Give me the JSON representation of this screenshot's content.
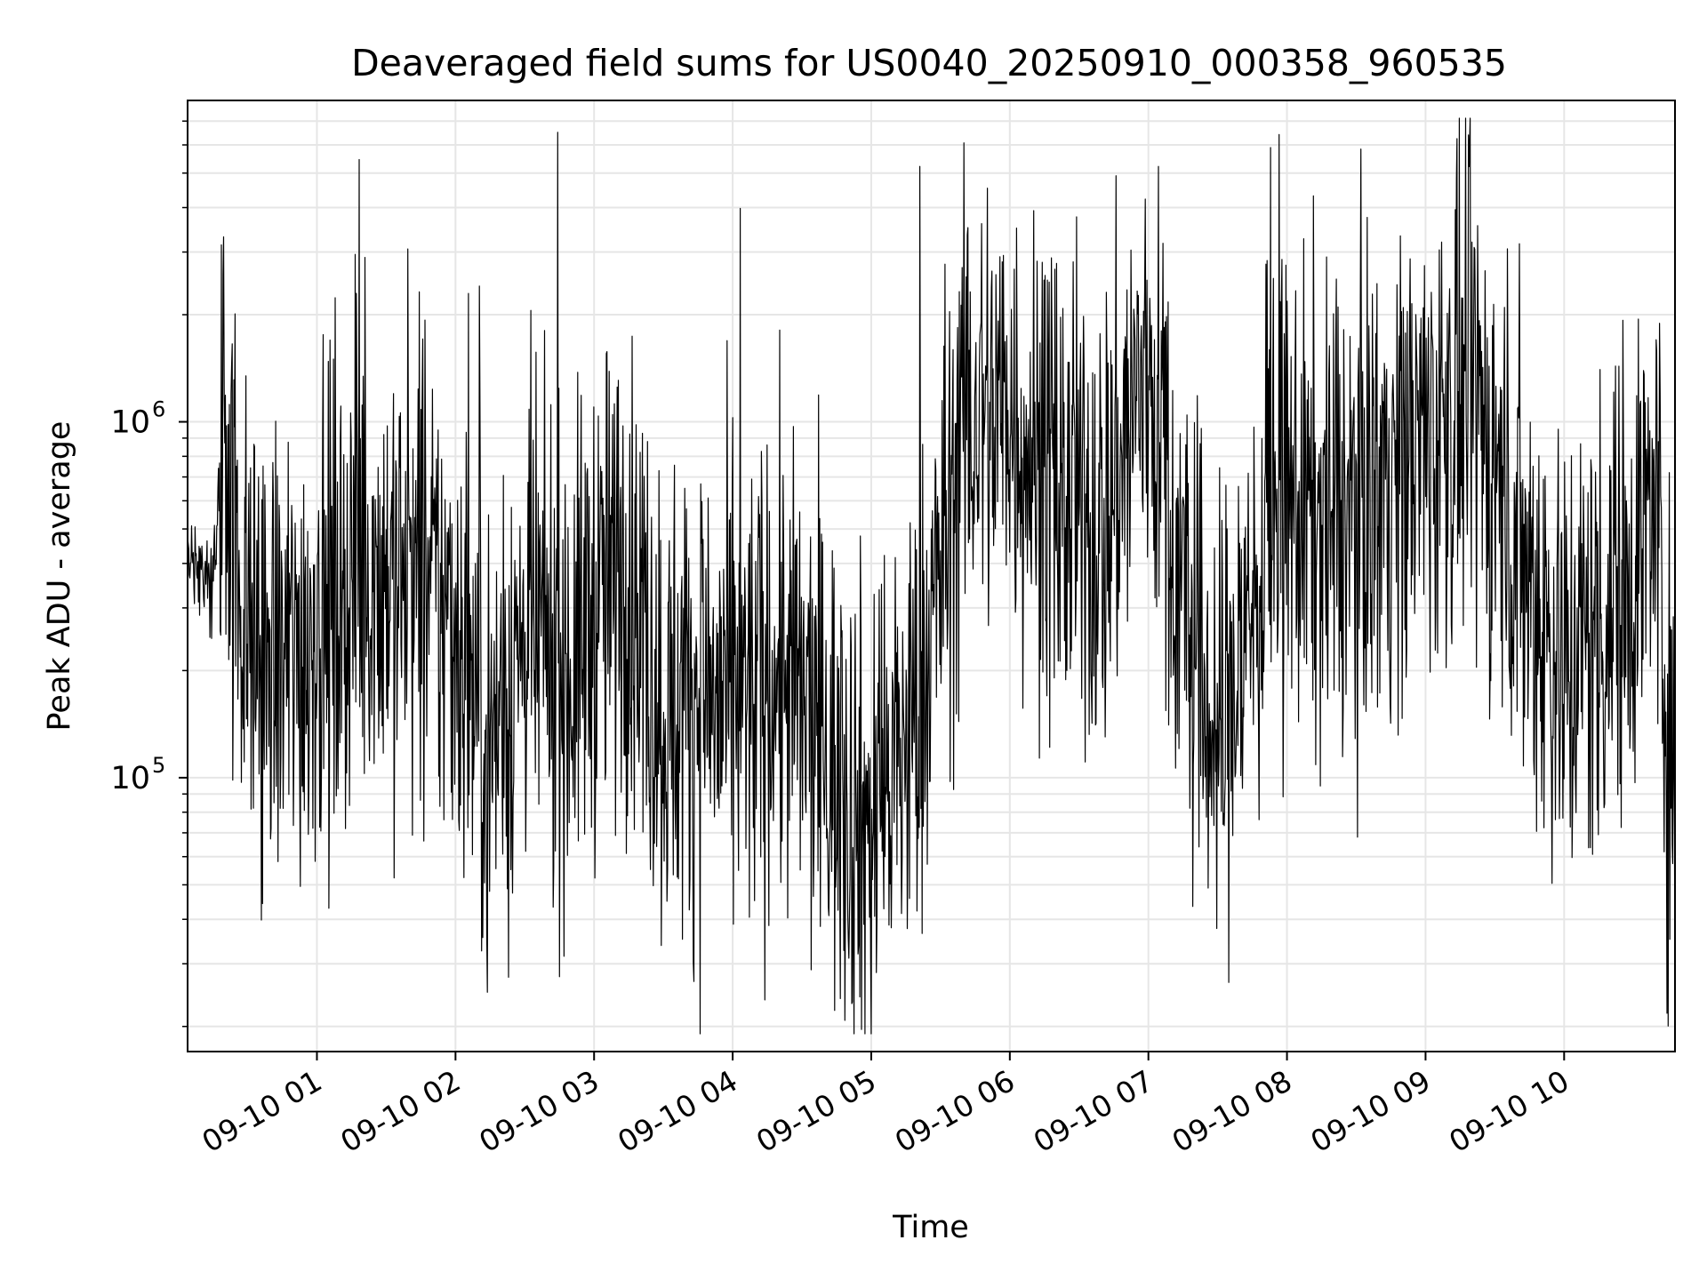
{
  "chart_data": {
    "type": "line",
    "title": "Deaveraged field sums for US0040_20250910_000358_960535",
    "xlabel": "Time",
    "ylabel": "Peak ADU - average",
    "yscale": "log",
    "x_range": [
      "2025-09-10 00:04",
      "2025-09-10 10:48"
    ],
    "ylim": [
      17000,
      8000000
    ],
    "grid": "both (major and minor, light gray)",
    "line_color": "#000000",
    "x_ticks": [
      "09-10 01",
      "09-10 02",
      "09-10 03",
      "09-10 04",
      "09-10 05",
      "09-10 06",
      "09-10 07",
      "09-10 08",
      "09-10 09",
      "09-10 10"
    ],
    "y_ticks": [
      {
        "base": "10",
        "exp": "5",
        "value": 100000
      },
      {
        "base": "10",
        "exp": "6",
        "value": 1000000
      }
    ],
    "series": [
      {
        "x": [
          "2025-09-10 00:04",
          "2025-09-10 00:15",
          "2025-09-10 00:20",
          "2025-09-10 00:30",
          "2025-09-10 00:45",
          "2025-09-10 01:00",
          "2025-09-10 01:20",
          "2025-09-10 01:40",
          "2025-09-10 02:00",
          "2025-09-10 02:15",
          "2025-09-10 02:30",
          "2025-09-10 02:50",
          "2025-09-10 03:00",
          "2025-09-10 03:15",
          "2025-09-10 03:30",
          "2025-09-10 03:45",
          "2025-09-10 04:00",
          "2025-09-10 04:20",
          "2025-09-10 04:40",
          "2025-09-10 05:00",
          "2025-09-10 05:20",
          "2025-09-10 05:40",
          "2025-09-10 06:00",
          "2025-09-10 06:20",
          "2025-09-10 06:40",
          "2025-09-10 07:00",
          "2025-09-10 07:15",
          "2025-09-10 07:30",
          "2025-09-10 07:45",
          "2025-09-10 08:00",
          "2025-09-10 08:20",
          "2025-09-10 08:40",
          "2025-09-10 09:00",
          "2025-09-10 09:20",
          "2025-09-10 09:40",
          "2025-09-10 10:00",
          "2025-09-10 10:20",
          "2025-09-10 10:40",
          "2025-09-10 10:48"
        ],
        "y": [
          420000,
          380000,
          1000000,
          250000,
          200000,
          280000,
          400000,
          350000,
          280000,
          120000,
          250000,
          200000,
          300000,
          400000,
          150000,
          180000,
          150000,
          200000,
          120000,
          70000,
          150000,
          1000000,
          1100000,
          600000,
          500000,
          1500000,
          300000,
          120000,
          300000,
          600000,
          500000,
          700000,
          900000,
          1200000,
          450000,
          200000,
          300000,
          600000,
          60000
        ]
      }
    ]
  }
}
